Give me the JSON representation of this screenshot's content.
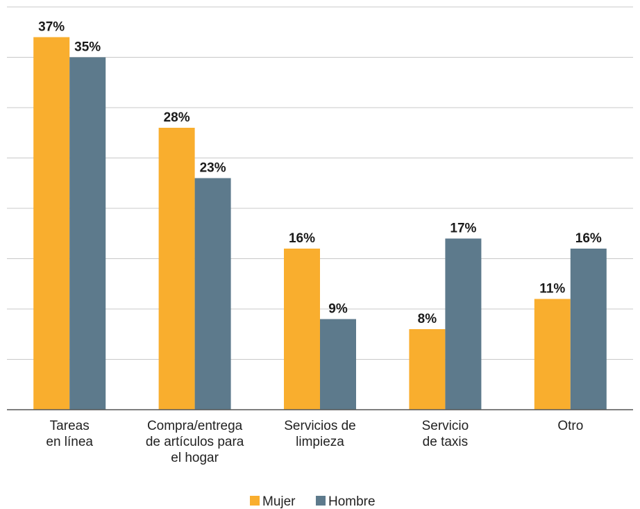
{
  "chart_data": {
    "type": "bar",
    "categories": [
      [
        "Tareas",
        "en línea"
      ],
      [
        "Compra/entrega",
        "de artículos para",
        "el hogar"
      ],
      [
        "Servicios de",
        "limpieza"
      ],
      [
        "Servicio",
        "de taxis"
      ],
      [
        "Otro"
      ]
    ],
    "series": [
      {
        "name": "Mujer",
        "color": "#F9AE2E",
        "values": [
          37,
          28,
          16,
          8,
          11
        ],
        "labels": [
          "37%",
          "28%",
          "16%",
          "8%",
          "11%"
        ]
      },
      {
        "name": "Hombre",
        "color": "#5D7A8C",
        "values": [
          35,
          23,
          9,
          17,
          16
        ],
        "labels": [
          "35%",
          "23%",
          "9%",
          "17%",
          "16%"
        ]
      }
    ],
    "ylim": [
      0,
      40
    ],
    "grid": true,
    "legend_position": "bottom-center",
    "title": "",
    "xlabel": "",
    "ylabel": ""
  }
}
